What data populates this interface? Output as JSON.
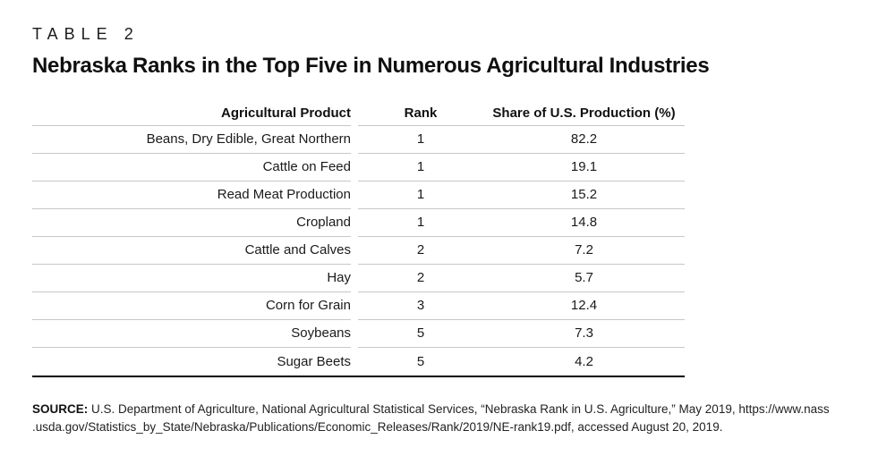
{
  "chart_data": {
    "type": "table",
    "kicker": "TABLE 2",
    "title": "Nebraska Ranks in the Top Five in Numerous Agricultural Industries",
    "columns": [
      "Agricultural Product",
      "Rank",
      "Share of U.S. Production (%)"
    ],
    "rows": [
      {
        "product": "Beans, Dry Edible, Great Northern",
        "rank": "1",
        "share": "82.2"
      },
      {
        "product": "Cattle on Feed",
        "rank": "1",
        "share": "19.1"
      },
      {
        "product": "Read Meat Production",
        "rank": "1",
        "share": "15.2"
      },
      {
        "product": "Cropland",
        "rank": "1",
        "share": "14.8"
      },
      {
        "product": "Cattle and Calves",
        "rank": "2",
        "share": "7.2"
      },
      {
        "product": "Hay",
        "rank": "2",
        "share": "5.7"
      },
      {
        "product": "Corn for Grain",
        "rank": "3",
        "share": "12.4"
      },
      {
        "product": "Soybeans",
        "rank": "5",
        "share": "7.3"
      },
      {
        "product": "Sugar Beets",
        "rank": "5",
        "share": "4.2"
      }
    ],
    "layout": {
      "product_column_align": "right",
      "rank_column_align": "center",
      "share_column_align": "center"
    }
  },
  "source": {
    "label": "SOURCE:",
    "line1": "U.S. Department of Agriculture, National Agricultural Statistical Services, “Nebraska Rank in U.S. Agriculture,” May 2019, https://www.nass",
    "line2": ".usda.gov/Statistics_by_State/Nebraska/Publications/Economic_Releases/Rank/2019/NE-rank19.pdf, accessed August 20, 2019."
  },
  "colors": {
    "row_rule": "#c7c7c7",
    "table_end_rule": "#000000",
    "text": "#1a1a1a"
  }
}
